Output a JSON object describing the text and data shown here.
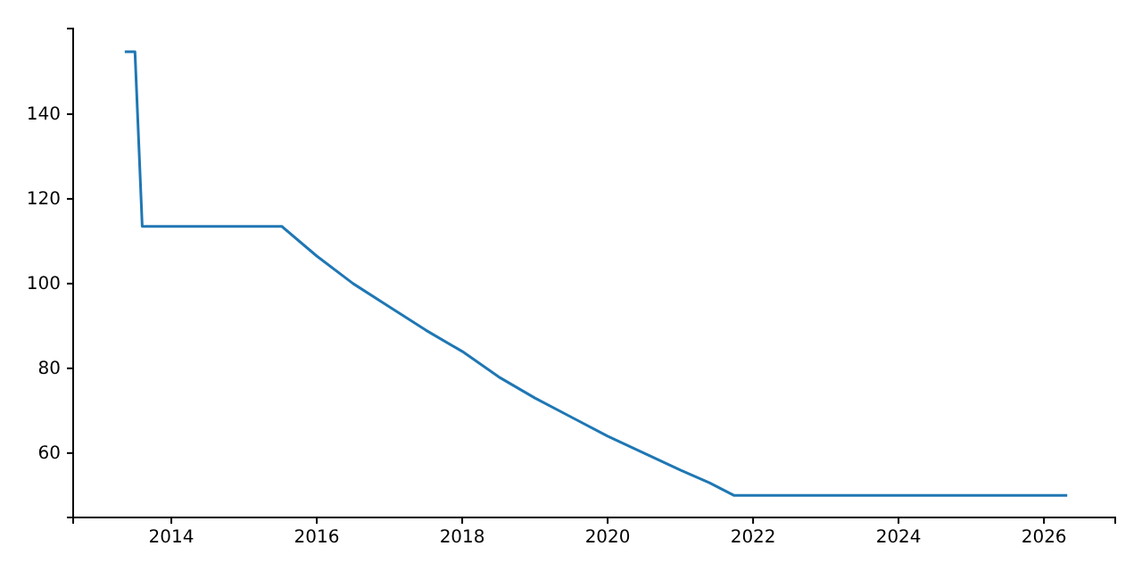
{
  "chart_data": {
    "type": "line",
    "x": [
      2013.36,
      2013.5,
      2013.6,
      2015.52,
      2016,
      2016.5,
      2017,
      2017.5,
      2018,
      2018.5,
      2019,
      2019.5,
      2020,
      2020.5,
      2021,
      2021.4,
      2021.74,
      2026.32
    ],
    "series": [
      {
        "color": "#1f77b4",
        "values": [
          154.7,
          154.7,
          113.5,
          113.5,
          106.5,
          100,
          94.5,
          89,
          84,
          78,
          73,
          68.5,
          64,
          60,
          56,
          53,
          50,
          50
        ]
      }
    ],
    "xlim": [
      2012.65,
      2026.98
    ],
    "ylim": [
      44.8,
      160.2
    ],
    "xticks": [
      2014,
      2016,
      2018,
      2020,
      2022,
      2024,
      2026
    ],
    "yticks": [
      60,
      80,
      100,
      120,
      140
    ],
    "grid": false,
    "marker": "none",
    "line_style": "solid"
  }
}
